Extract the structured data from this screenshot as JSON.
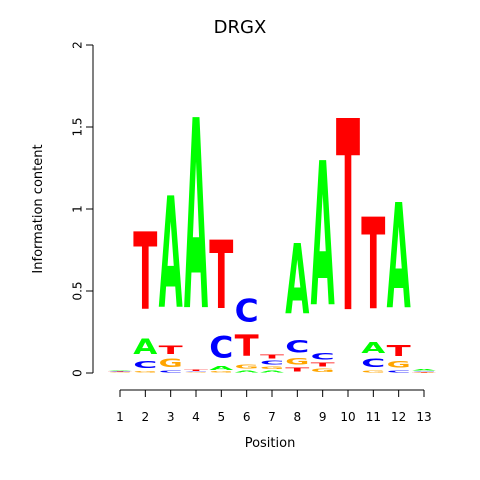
{
  "chart_data": {
    "type": "sequence-logo",
    "title": "DRGX",
    "xlabel": "Position",
    "ylabel": "Information content",
    "ylim": [
      0,
      2
    ],
    "y_ticks": [
      "0",
      "0.5",
      "1",
      "1.5",
      "2"
    ],
    "y_tick_values": [
      0,
      0.5,
      1,
      1.5,
      2
    ],
    "x_ticks": [
      "1",
      "2",
      "3",
      "4",
      "5",
      "6",
      "7",
      "8",
      "9",
      "10",
      "11",
      "12",
      "13"
    ],
    "base_colors": {
      "A": "#00ff00",
      "C": "#0000ff",
      "G": "#ffa500",
      "T": "#ff0000"
    },
    "positions": [
      {
        "pos": 1,
        "letters": [
          [
            "G",
            0.004
          ],
          [
            "T",
            0.004
          ],
          [
            "C",
            0.006
          ],
          [
            "A",
            0.006
          ]
        ]
      },
      {
        "pos": 2,
        "letters": [
          [
            "G",
            0.015
          ],
          [
            "C",
            0.07
          ],
          [
            "A",
            0.15
          ],
          [
            "T",
            0.76
          ]
        ]
      },
      {
        "pos": 3,
        "letters": [
          [
            "C",
            0.02
          ],
          [
            "G",
            0.08
          ],
          [
            "T",
            0.08
          ],
          [
            "A",
            1.09
          ]
        ]
      },
      {
        "pos": 4,
        "letters": [
          [
            "G",
            0.005
          ],
          [
            "C",
            0.005
          ],
          [
            "T",
            0.01
          ],
          [
            "A",
            1.86
          ]
        ]
      },
      {
        "pos": 5,
        "letters": [
          [
            "G",
            0.01
          ],
          [
            "A",
            0.04
          ],
          [
            "C",
            0.21
          ],
          [
            "T",
            0.67
          ]
        ]
      },
      {
        "pos": 6,
        "letters": [
          [
            "A",
            0.02
          ],
          [
            "G",
            0.04
          ],
          [
            "T",
            0.21
          ],
          [
            "C",
            0.22
          ]
        ]
      },
      {
        "pos": 7,
        "letters": [
          [
            "A",
            0.02
          ],
          [
            "G",
            0.025
          ],
          [
            "C",
            0.035
          ],
          [
            "T",
            0.035
          ]
        ]
      },
      {
        "pos": 8,
        "letters": [
          [
            "T",
            0.04
          ],
          [
            "G",
            0.06
          ],
          [
            "C",
            0.12
          ],
          [
            "A",
            0.69
          ]
        ]
      },
      {
        "pos": 9,
        "letters": [
          [
            "G",
            0.03
          ],
          [
            "T",
            0.04
          ],
          [
            "C",
            0.06
          ],
          [
            "A",
            1.41
          ]
        ]
      },
      {
        "pos": 10,
        "letters": [
          [
            "A",
            0.002
          ],
          [
            "G",
            0.002
          ],
          [
            "C",
            0.002
          ],
          [
            "T",
            1.87
          ]
        ]
      },
      {
        "pos": 11,
        "letters": [
          [
            "G",
            0.02
          ],
          [
            "C",
            0.08
          ],
          [
            "A",
            0.11
          ],
          [
            "T",
            0.9
          ]
        ]
      },
      {
        "pos": 12,
        "letters": [
          [
            "C",
            0.02
          ],
          [
            "G",
            0.06
          ],
          [
            "T",
            0.11
          ],
          [
            "A",
            1.03
          ]
        ]
      },
      {
        "pos": 13,
        "letters": [
          [
            "G",
            0.003
          ],
          [
            "T",
            0.004
          ],
          [
            "C",
            0.006
          ],
          [
            "A",
            0.01
          ]
        ]
      }
    ]
  }
}
